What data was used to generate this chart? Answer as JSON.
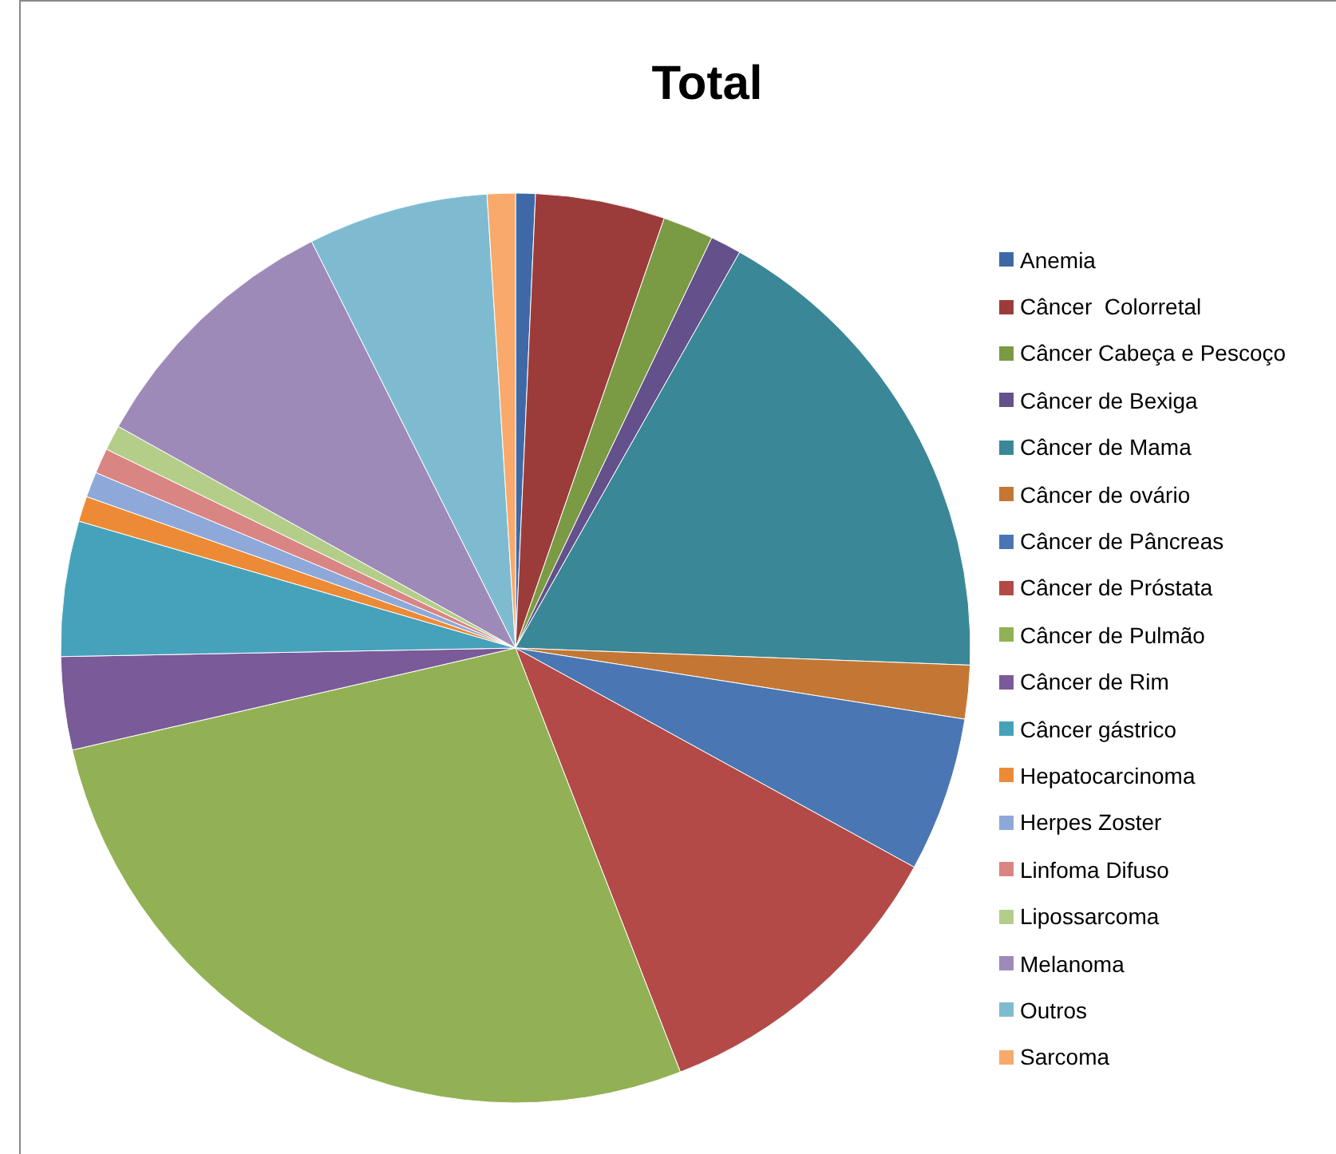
{
  "chart_data": {
    "type": "pie",
    "title": "Total",
    "categories": [
      "Anemia",
      "Câncer  Colorretal",
      "Câncer Cabeça e Pescoço",
      "Câncer de Bexiga",
      "Câncer de Mama",
      "Câncer de ovário",
      "Câncer de Pâncreas",
      "Câncer de Próstata",
      "Câncer de Pulmão",
      "Câncer de Rim",
      "Câncer gástrico",
      "Hepatocarcinoma",
      "Herpes Zoster",
      "Linfoma Difuso",
      "Lipossarcoma",
      "Melanoma",
      "Outros",
      "Sarcoma"
    ],
    "values": [
      0.7,
      4.6,
      1.8,
      1.1,
      17.4,
      1.9,
      5.5,
      11.1,
      27.3,
      3.3,
      4.8,
      0.9,
      0.9,
      0.9,
      0.9,
      9.5,
      6.4,
      1.0
    ],
    "colors": [
      "#3f69a6",
      "#9b3c3a",
      "#7b9a44",
      "#64508a",
      "#3a8797",
      "#c47734",
      "#4a77b3",
      "#b34a47",
      "#92b154",
      "#7a5a99",
      "#46a2bb",
      "#ed8a36",
      "#8ea9d9",
      "#d98583",
      "#b4ce8a",
      "#9e8ab8",
      "#7fbbd0",
      "#f8a96b"
    ],
    "legend": "right"
  }
}
